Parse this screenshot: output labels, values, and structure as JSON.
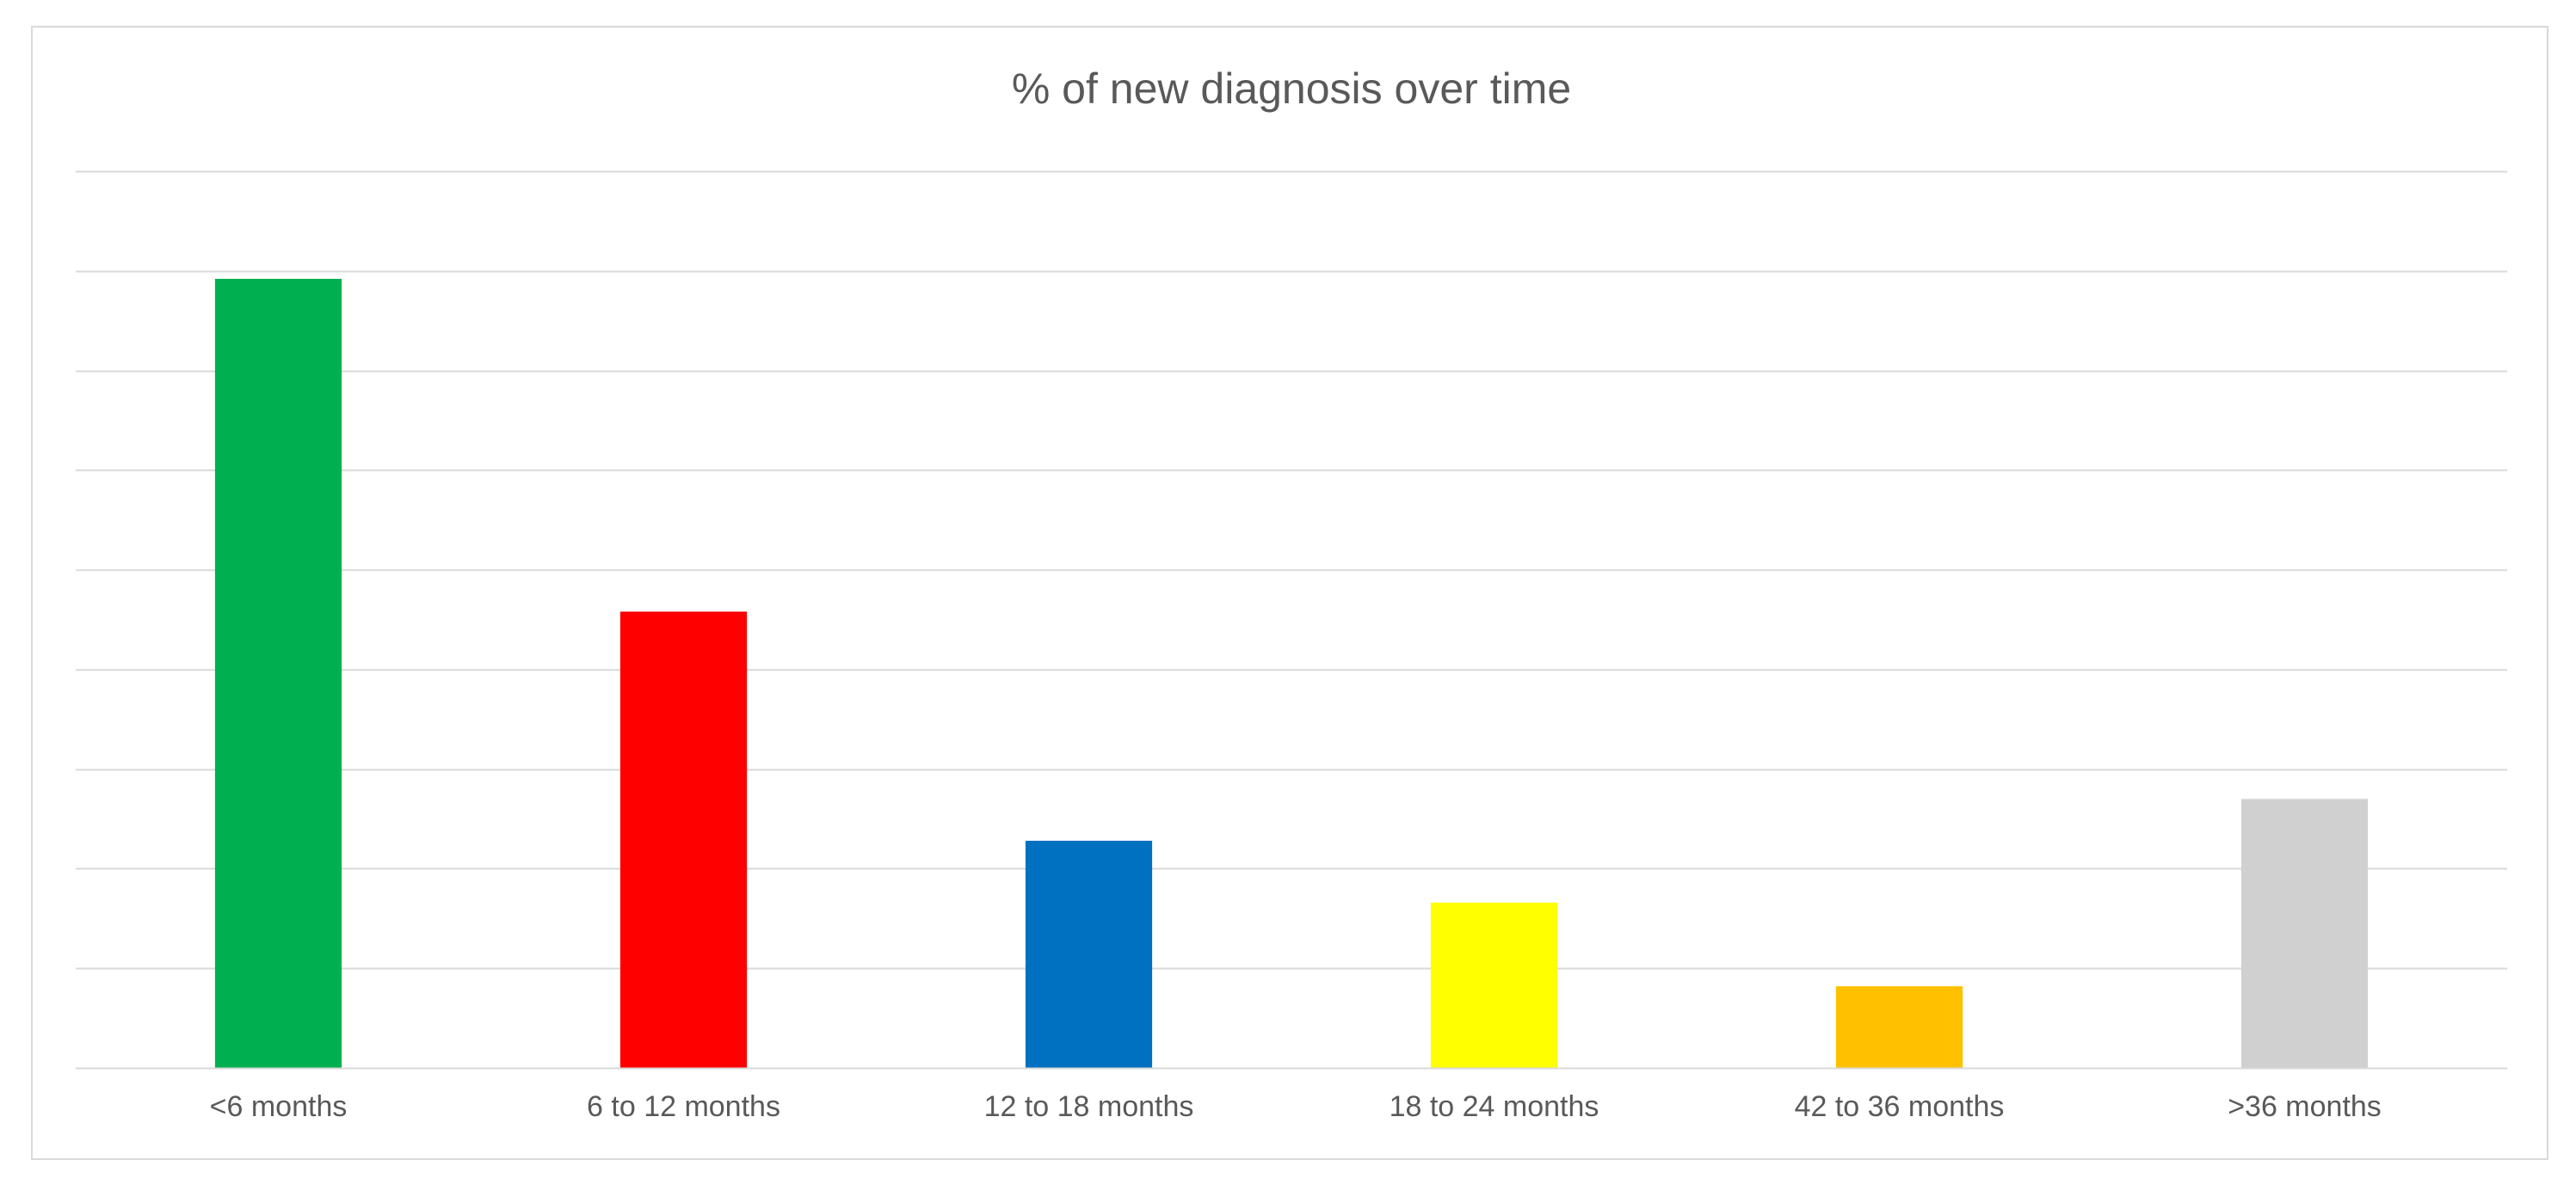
{
  "chart_data": {
    "type": "bar",
    "title": "% of new diagnosis over time",
    "xlabel": "",
    "ylabel": "",
    "categories": [
      "<6 months",
      "6 to 12 months",
      "12 to 18 months",
      "18 to 24 months",
      "42 to 36 months",
      ">36 months"
    ],
    "values": [
      39.6,
      22.9,
      11.4,
      8.3,
      4.1,
      13.5
    ],
    "colors": [
      "#00B050",
      "#FF0000",
      "#0070C0",
      "#FFFF00",
      "#FFC000",
      "#D0D0D0"
    ],
    "ylim": [
      0,
      45
    ],
    "ytick_step": 5,
    "grid": true,
    "y_tick_labels_shown": false,
    "legend": "none"
  }
}
